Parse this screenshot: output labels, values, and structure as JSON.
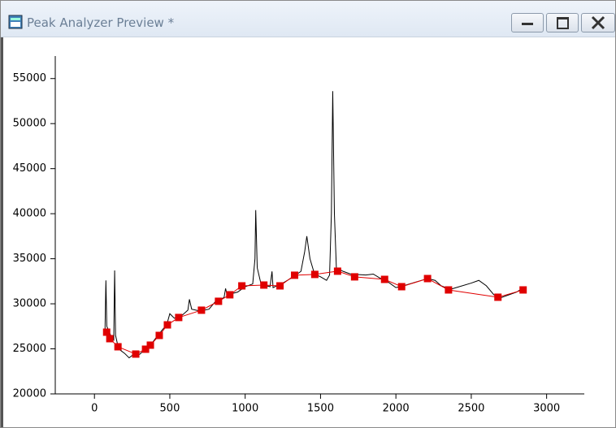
{
  "window": {
    "title": "Peak Analyzer Preview *"
  },
  "chart_data": {
    "type": "line",
    "xlim": [
      -260,
      3250
    ],
    "xticks": [
      0,
      500,
      1000,
      1500,
      2000,
      2500,
      3000
    ],
    "ylim": [
      20000,
      57500
    ],
    "yticks": [
      20000,
      25000,
      30000,
      35000,
      40000,
      45000,
      50000,
      55000
    ],
    "series": [
      {
        "color": "#000000",
        "marker": "none",
        "x": [
          70,
          76,
          82,
          110,
          128,
          134,
          140,
          160,
          200,
          230,
          260,
          300,
          340,
          380,
          430,
          480,
          500,
          530,
          580,
          620,
          630,
          645,
          700,
          760,
          800,
          860,
          870,
          880,
          950,
          1000,
          1050,
          1065,
          1070,
          1080,
          1105,
          1140,
          1165,
          1178,
          1185,
          1250,
          1320,
          1370,
          1395,
          1409,
          1430,
          1460,
          1500,
          1540,
          1560,
          1572,
          1581,
          1592,
          1605,
          1650,
          1700,
          1800,
          1850,
          1900,
          1950,
          2000,
          2050,
          2150,
          2210,
          2260,
          2300,
          2360,
          2400,
          2500,
          2550,
          2600,
          2650,
          2700,
          2800,
          2840
        ],
        "values": [
          27000,
          32600,
          27500,
          26400,
          26000,
          33700,
          26500,
          25000,
          24500,
          24000,
          24400,
          24400,
          25000,
          25600,
          26700,
          27700,
          28900,
          28400,
          28700,
          29300,
          30500,
          29400,
          29200,
          29400,
          30200,
          30700,
          31700,
          31000,
          31300,
          31900,
          32200,
          35000,
          40400,
          34000,
          32200,
          32000,
          31900,
          33600,
          31800,
          32300,
          33000,
          33600,
          35800,
          37500,
          35000,
          33300,
          33000,
          32600,
          33200,
          40000,
          53600,
          40000,
          34000,
          33600,
          33300,
          33200,
          33300,
          32800,
          32400,
          31800,
          32000,
          32500,
          32800,
          32600,
          32000,
          31600,
          31800,
          32300,
          32600,
          32000,
          31000,
          30700,
          31300,
          31700
        ]
      },
      {
        "color": "#e00000",
        "marker": "square",
        "x": [
          81,
          102,
          156,
          274,
          339,
          371,
          430,
          484,
          559,
          710,
          823,
          898,
          978,
          1124,
          1231,
          1328,
          1462,
          1613,
          1726,
          1925,
          2038,
          2210,
          2349,
          2677,
          2844
        ],
        "values": [
          26850,
          26130,
          25230,
          24420,
          24960,
          25410,
          26490,
          27660,
          28480,
          29290,
          30280,
          31000,
          31990,
          32080,
          31990,
          33170,
          33260,
          33620,
          32990,
          32710,
          31900,
          32800,
          31540,
          30730,
          31540
        ]
      }
    ]
  }
}
